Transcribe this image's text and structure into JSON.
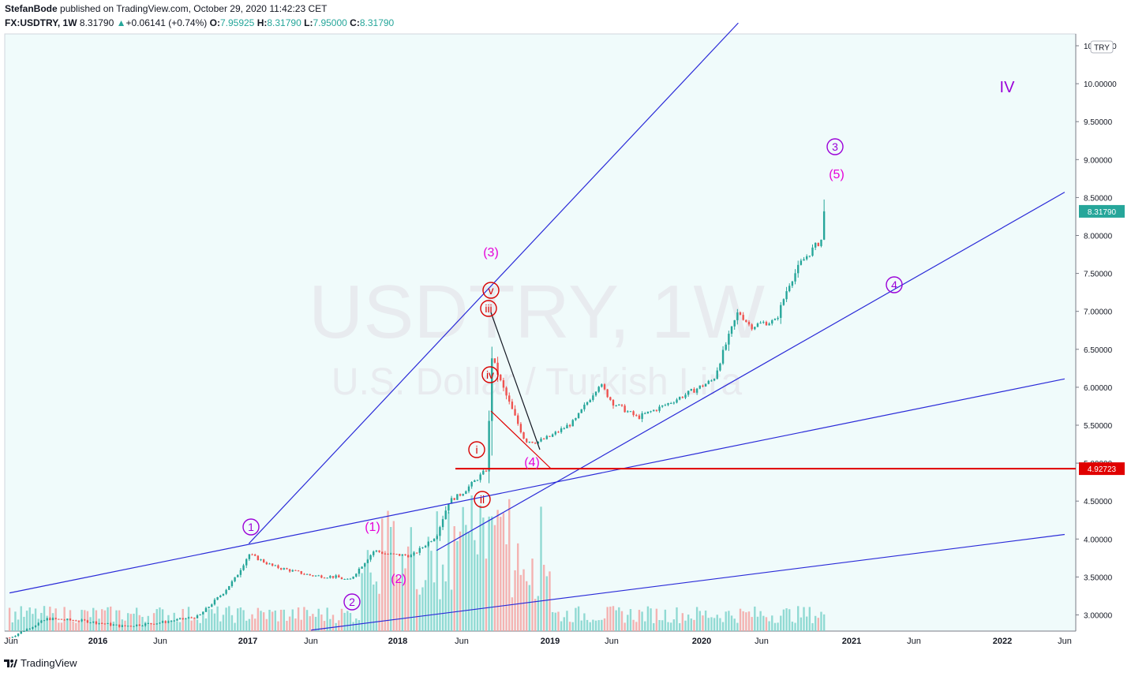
{
  "header": {
    "publisher": "StefanBode",
    "published": "published on TradingView.com, October 29, 2020 11:42:23 CET",
    "symbol": "FX:USDTRY, 1W",
    "last": "8.31790",
    "change": "+0.06141 (+0.74%)",
    "o_label": "O:",
    "o_val": "7.95925",
    "h_label": "H:",
    "h_val": "8.31790",
    "l_label": "L:",
    "l_val": "7.95000",
    "c_label": "C:",
    "c_val": "8.31790"
  },
  "watermark": {
    "line1": "USDTRY, 1W",
    "line2": "U.S. Dollar / Turkish Lira"
  },
  "footer": {
    "brand": "TradingView"
  },
  "colors": {
    "bg": "#f0fbfb",
    "up": "#26a69a",
    "down": "#ef5350",
    "trend": "#2a2ad8",
    "support": "#e00000",
    "wave_purple": "#9b00d8",
    "wave_magenta": "#e600d8",
    "wave_red": "#d80000"
  },
  "chart_data": {
    "type": "candlestick",
    "symbol": "USDTRY",
    "interval": "1W",
    "currency_badge": "TRY",
    "y_ticks": [
      "10.50000",
      "10.00000",
      "9.50000",
      "9.00000",
      "8.50000",
      "8.00000",
      "7.50000",
      "7.00000",
      "6.50000",
      "6.00000",
      "5.50000",
      "5.00000",
      "4.50000",
      "4.00000",
      "3.50000",
      "3.00000"
    ],
    "x_labels": [
      "Jun",
      "2016",
      "Jun",
      "2017",
      "Jun",
      "2018",
      "Jun",
      "2019",
      "Jun",
      "2020",
      "Jun",
      "2021",
      "Jun",
      "2022",
      "Jun"
    ],
    "last_price": "8.31790",
    "support_level": "4.92723",
    "close_path": [
      [
        "2015-06",
        2.7
      ],
      [
        "2015-09",
        2.95
      ],
      [
        "2015-12",
        2.92
      ],
      [
        "2016-03",
        2.85
      ],
      [
        "2016-06",
        2.9
      ],
      [
        "2016-09",
        2.98
      ],
      [
        "2016-11",
        3.3
      ],
      [
        "2016-12",
        3.5
      ],
      [
        "2017-01",
        3.8
      ],
      [
        "2017-03",
        3.64
      ],
      [
        "2017-06",
        3.52
      ],
      [
        "2017-08",
        3.5
      ],
      [
        "2017-09",
        3.45
      ],
      [
        "2017-11",
        3.85
      ],
      [
        "2017-12",
        3.8
      ],
      [
        "2018-02",
        3.78
      ],
      [
        "2018-04",
        4.05
      ],
      [
        "2018-05",
        4.5
      ],
      [
        "2018-06",
        4.6
      ],
      [
        "2018-08-01",
        4.92
      ],
      [
        "2018-08-13",
        6.4
      ],
      [
        "2018-09",
        6.1
      ],
      [
        "2018-10",
        5.7
      ],
      [
        "2018-11",
        5.3
      ],
      [
        "2018-12",
        5.28
      ],
      [
        "2019-01",
        5.35
      ],
      [
        "2019-03",
        5.55
      ],
      [
        "2019-05",
        6.05
      ],
      [
        "2019-06",
        5.8
      ],
      [
        "2019-08",
        5.6
      ],
      [
        "2019-10",
        5.75
      ],
      [
        "2019-12",
        5.92
      ],
      [
        "2020-02",
        6.1
      ],
      [
        "2020-03",
        6.55
      ],
      [
        "2020-04",
        7.0
      ],
      [
        "2020-05",
        6.8
      ],
      [
        "2020-06",
        6.85
      ],
      [
        "2020-07",
        6.87
      ],
      [
        "2020-08",
        7.35
      ],
      [
        "2020-09",
        7.65
      ],
      [
        "2020-10-20",
        7.95
      ],
      [
        "2020-10-29",
        8.3179
      ]
    ],
    "trend_lines": [
      {
        "from": [
          "2017-01",
          3.94
        ],
        "to": [
          "2020-04",
          10.8
        ]
      },
      {
        "from": [
          "2015-06",
          3.29
        ],
        "to": [
          "2022-06",
          6.11
        ]
      },
      {
        "from": [
          "2017-06",
          2.8
        ],
        "to": [
          "2022-06",
          4.06
        ]
      },
      {
        "from": [
          "2018-04",
          3.85
        ],
        "to": [
          "2022-06",
          8.57
        ]
      }
    ],
    "wave_labels": [
      {
        "text": "1",
        "style": "circle-purple"
      },
      {
        "text": "2",
        "style": "circle-purple"
      },
      {
        "text": "3",
        "style": "circle-purple"
      },
      {
        "text": "4",
        "style": "circle-purple"
      },
      {
        "text": "(1)",
        "style": "magenta"
      },
      {
        "text": "(2)",
        "style": "magenta"
      },
      {
        "text": "(3)",
        "style": "magenta"
      },
      {
        "text": "(4)",
        "style": "magenta"
      },
      {
        "text": "(5)",
        "style": "magenta"
      },
      {
        "text": "i",
        "style": "circle-red"
      },
      {
        "text": "ii",
        "style": "circle-red"
      },
      {
        "text": "iii",
        "style": "circle-red"
      },
      {
        "text": "iv",
        "style": "circle-red"
      },
      {
        "text": "v",
        "style": "circle-red"
      },
      {
        "text": "IV",
        "style": "purple"
      }
    ]
  }
}
